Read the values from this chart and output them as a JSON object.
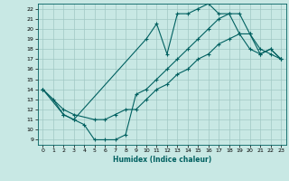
{
  "xlabel": "Humidex (Indice chaleur)",
  "xlim": [
    -0.5,
    23.5
  ],
  "ylim": [
    8.5,
    22.5
  ],
  "xticks": [
    0,
    1,
    2,
    3,
    4,
    5,
    6,
    7,
    8,
    9,
    10,
    11,
    12,
    13,
    14,
    15,
    16,
    17,
    18,
    19,
    20,
    21,
    22,
    23
  ],
  "yticks": [
    9,
    10,
    11,
    12,
    13,
    14,
    15,
    16,
    17,
    18,
    19,
    20,
    21,
    22
  ],
  "bg_color": "#c8e8e4",
  "line_color": "#006060",
  "grid_color": "#a0c8c4",
  "curve_top_x": [
    0,
    1,
    2,
    3,
    10,
    11,
    12,
    13,
    14,
    15,
    16,
    17,
    18,
    19,
    20,
    21,
    22,
    23
  ],
  "curve_top_y": [
    14,
    13,
    11.5,
    11,
    19,
    20.5,
    17.5,
    21.5,
    21.5,
    22,
    22.5,
    21.5,
    21.5,
    19.5,
    18,
    17.5,
    18,
    17
  ],
  "curve_mid_x": [
    0,
    2,
    3,
    5,
    6,
    7,
    8,
    9,
    10,
    11,
    12,
    13,
    14,
    15,
    16,
    17,
    18,
    19,
    20,
    21,
    22,
    23
  ],
  "curve_mid_y": [
    14,
    12,
    11.5,
    11,
    11,
    11.5,
    12,
    12,
    13,
    14,
    14.5,
    15.5,
    16,
    17,
    17.5,
    18.5,
    19,
    19.5,
    19.5,
    18,
    17.5,
    17
  ],
  "curve_bot_x": [
    0,
    2,
    3,
    4,
    5,
    6,
    7,
    8,
    9,
    10,
    11,
    12,
    13,
    14,
    15,
    16,
    17,
    18,
    19,
    20,
    21,
    22,
    23
  ],
  "curve_bot_y": [
    14,
    11.5,
    11,
    10.5,
    9,
    9,
    9,
    9.5,
    13.5,
    14,
    15,
    16,
    17,
    18,
    19,
    20,
    21,
    21.5,
    21.5,
    19.5,
    17.5,
    18,
    17
  ]
}
